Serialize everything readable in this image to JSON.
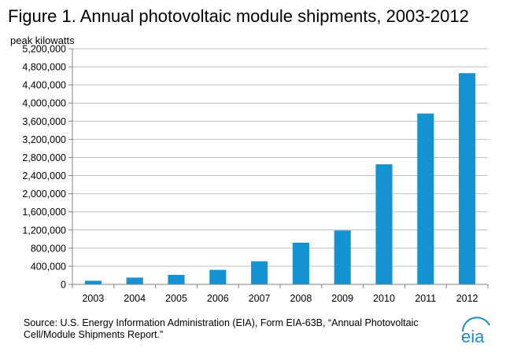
{
  "header": {
    "title": "Figure 1. Annual photovoltaic module shipments, 2003-2012",
    "units": "peak kilowatts"
  },
  "footer": {
    "source": "Source:  U.S. Energy Information Administration (EIA), Form EIA-63B, “Annual Photovoltaic Cell/Module Shipments Report.”",
    "logo_text": "eia"
  },
  "colors": {
    "bar": "#1592d2",
    "logo": "#1d8bc9"
  },
  "chart_data": {
    "type": "bar",
    "title": "Figure 1. Annual photovoltaic module shipments, 2003-2012",
    "ylabel": "peak kilowatts",
    "xlabel": "",
    "categories": [
      "2003",
      "2004",
      "2005",
      "2006",
      "2007",
      "2008",
      "2009",
      "2010",
      "2011",
      "2012"
    ],
    "values": [
      80000,
      150000,
      210000,
      320000,
      510000,
      920000,
      1190000,
      2650000,
      3770000,
      4660000
    ],
    "ylim": [
      0,
      5200000
    ],
    "yticks": [
      0,
      400000,
      800000,
      1200000,
      1600000,
      2000000,
      2400000,
      2800000,
      3200000,
      3600000,
      4000000,
      4400000,
      4800000,
      5200000
    ],
    "ytick_labels": [
      "0",
      "400,000",
      "800,000",
      "1,200,000",
      "1,600,000",
      "2,000,000",
      "2,400,000",
      "2,800,000",
      "3,200,000",
      "3,600,000",
      "4,000,000",
      "4,400,000",
      "4,800,000",
      "5,200,000"
    ],
    "grid": true,
    "legend": "none"
  }
}
